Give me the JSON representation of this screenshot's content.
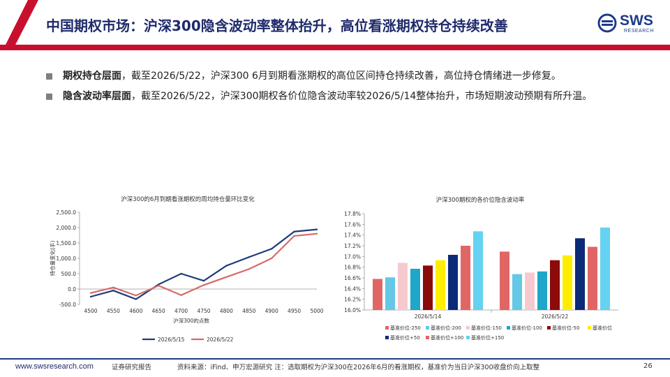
{
  "header": {
    "title": "中国期权市场：沪深300隐含波动率整体抬升，高位看涨期权持仓持续改善",
    "logo_text": "SWS",
    "logo_sub": "RESEARCH",
    "colors": {
      "red_bar": "#c8102e",
      "title_color": "#1f2a6b"
    }
  },
  "bullets": [
    {
      "bold": "期权持仓层面",
      "text": "，截至2026/5/22，沪深300 6月到期看涨期权的高位区间持仓持续改善，高位持仓情绪进一步修复。"
    },
    {
      "bold": "隐含波动率层面",
      "text": "，截至2026/5/22，沪深300期权各价位隐含波动率较2026/5/14整体抬升，市场短期波动预期有所升温。"
    }
  ],
  "chart_data": [
    {
      "type": "line",
      "title": "沪深300的6月到期看涨期权的周均持仓量环比变化",
      "xlabel": "沪深300的点数",
      "ylabel": "持仓量变化(手)",
      "x": [
        4500,
        4550,
        4600,
        4650,
        4700,
        4750,
        4800,
        4850,
        4900,
        4950,
        5000
      ],
      "y_ticks": [
        "2,500.0",
        "2,000.0",
        "1,500.0",
        "1,000.0",
        "500.0",
        "0.0",
        "-500.0"
      ],
      "ylim": [
        -500,
        2500
      ],
      "series": [
        {
          "name": "2026/5/15",
          "color": "#1f3a7a",
          "values": [
            -250,
            -50,
            -330,
            150,
            500,
            270,
            760,
            1040,
            1310,
            1870,
            1940
          ]
        },
        {
          "name": "2026/5/22",
          "color": "#d46a6a",
          "values": [
            -130,
            50,
            -210,
            110,
            -200,
            130,
            390,
            650,
            1000,
            1730,
            1800
          ]
        }
      ],
      "legend": "bottom",
      "grid": false
    },
    {
      "type": "bar",
      "title": "沪深300期权的各价位隐含波动率",
      "categories": [
        "2026/5/14",
        "2026/5/22"
      ],
      "y_ticks": [
        "17.8%",
        "17.6%",
        "17.4%",
        "17.2%",
        "17.0%",
        "16.8%",
        "16.6%",
        "16.4%",
        "16.2%",
        "16.0%"
      ],
      "ylim": [
        16.0,
        17.8
      ],
      "series": [
        {
          "name": "基准价位-250",
          "color": "#e06666",
          "values": [
            16.58,
            17.09
          ]
        },
        {
          "name": "基准价位-200",
          "color": "#64c8e6",
          "values": [
            16.61,
            16.67
          ]
        },
        {
          "name": "基准价位-150",
          "color": "#f6c9cf",
          "values": [
            16.88,
            16.7
          ]
        },
        {
          "name": "基准价位-100",
          "color": "#1fa6c9",
          "values": [
            16.77,
            16.72
          ]
        },
        {
          "name": "基准价位-50",
          "color": "#8b0a0a",
          "values": [
            16.83,
            16.93
          ]
        },
        {
          "name": "基准价位",
          "color": "#ffee00",
          "values": [
            16.93,
            17.02
          ]
        },
        {
          "name": "基准价位+50",
          "color": "#0b2a78",
          "values": [
            17.03,
            17.34
          ]
        },
        {
          "name": "基准价位+100",
          "color": "#e06666",
          "values": [
            17.2,
            17.18
          ]
        },
        {
          "name": "基准价位+150",
          "color": "#64d2f0",
          "values": [
            17.47,
            17.54
          ]
        }
      ],
      "legend": "bottom",
      "grid": false
    }
  ],
  "footer": {
    "url": "www.swsresearch.com",
    "report_label": "证券研究报告",
    "source": "资料来源：iFind、申万宏源研究 注：选取期权为沪深300在2026年6月的看涨期权，基准价为当日沪深300收盘价向上取整",
    "page": "26"
  }
}
